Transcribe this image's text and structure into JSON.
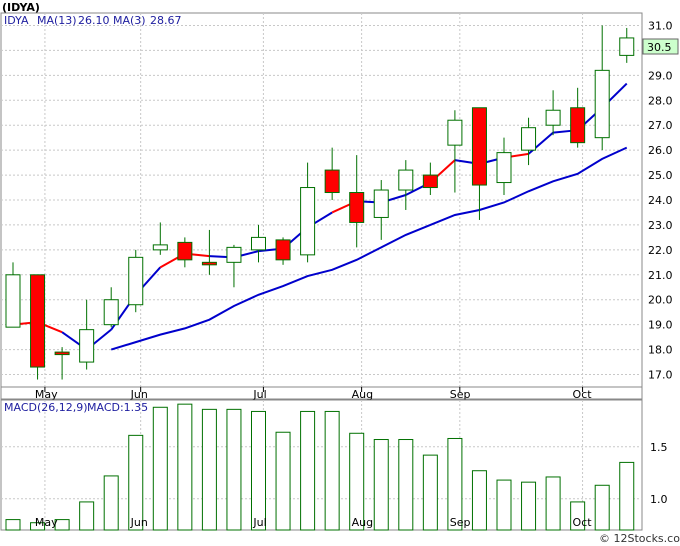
{
  "chart_data": [
    {
      "type": "candlestick",
      "title": "(IDYA)",
      "legend": {
        "ticker": "IDYA",
        "ma13_label": "MA(13)",
        "ma13_value": "26.10",
        "ma3_label": "MA(3)",
        "ma3_value": "28.67"
      },
      "last_price": "30.5",
      "ylim": [
        16.5,
        31.5
      ],
      "y_ticks": [
        "17.0",
        "18.0",
        "19.0",
        "20.0",
        "21.0",
        "22.0",
        "23.0",
        "24.0",
        "25.0",
        "26.0",
        "27.0",
        "28.0",
        "29.0",
        "30.0",
        "31.0"
      ],
      "x_ticks": [
        {
          "label": "May",
          "index": 1.3
        },
        {
          "label": "Jun",
          "index": 5.2
        },
        {
          "label": "Jul",
          "index": 10.2
        },
        {
          "label": "Aug",
          "index": 14.2
        },
        {
          "label": "Sep",
          "index": 18.2
        },
        {
          "label": "Oct",
          "index": 23.2
        }
      ],
      "candles": [
        {
          "open": 18.9,
          "high": 21.5,
          "low": 18.9,
          "close": 21.0
        },
        {
          "open": 21.0,
          "high": 21.0,
          "low": 16.8,
          "close": 17.3
        },
        {
          "open": 17.9,
          "high": 18.1,
          "low": 16.8,
          "close": 17.8
        },
        {
          "open": 17.5,
          "high": 20.0,
          "low": 17.2,
          "close": 18.8
        },
        {
          "open": 19.0,
          "high": 20.5,
          "low": 18.9,
          "close": 20.0
        },
        {
          "open": 19.8,
          "high": 22.0,
          "low": 19.5,
          "close": 21.7
        },
        {
          "open": 22.0,
          "high": 23.1,
          "low": 21.8,
          "close": 22.2
        },
        {
          "open": 22.3,
          "high": 22.5,
          "low": 21.3,
          "close": 21.6
        },
        {
          "open": 21.5,
          "high": 22.8,
          "low": 21.0,
          "close": 21.4
        },
        {
          "open": 21.5,
          "high": 22.2,
          "low": 20.5,
          "close": 22.1
        },
        {
          "open": 22.0,
          "high": 23.0,
          "low": 21.5,
          "close": 22.5
        },
        {
          "open": 22.4,
          "high": 22.5,
          "low": 21.4,
          "close": 21.6
        },
        {
          "open": 21.8,
          "high": 25.5,
          "low": 21.5,
          "close": 24.5
        },
        {
          "open": 25.2,
          "high": 26.1,
          "low": 24.0,
          "close": 24.3
        },
        {
          "open": 24.3,
          "high": 25.8,
          "low": 22.1,
          "close": 23.1
        },
        {
          "open": 23.3,
          "high": 24.8,
          "low": 22.4,
          "close": 24.4
        },
        {
          "open": 24.4,
          "high": 25.6,
          "low": 23.6,
          "close": 25.2
        },
        {
          "open": 25.0,
          "high": 25.5,
          "low": 24.2,
          "close": 24.5
        },
        {
          "open": 26.2,
          "high": 27.6,
          "low": 24.3,
          "close": 27.2
        },
        {
          "open": 27.7,
          "high": 27.7,
          "low": 23.2,
          "close": 24.6
        },
        {
          "open": 24.7,
          "high": 26.5,
          "low": 24.2,
          "close": 25.9
        },
        {
          "open": 26.0,
          "high": 27.3,
          "low": 25.4,
          "close": 26.9
        },
        {
          "open": 27.0,
          "high": 28.4,
          "low": 26.6,
          "close": 27.6
        },
        {
          "open": 27.7,
          "high": 28.5,
          "low": 26.1,
          "close": 26.3
        },
        {
          "open": 26.5,
          "high": 31.0,
          "low": 26.0,
          "close": 29.2
        },
        {
          "open": 29.8,
          "high": 30.9,
          "low": 29.5,
          "close": 30.5
        }
      ],
      "ma13": [
        {
          "index": 4,
          "value": 18.0
        },
        {
          "index": 5,
          "value": 18.3
        },
        {
          "index": 6,
          "value": 18.6
        },
        {
          "index": 7,
          "value": 18.85
        },
        {
          "index": 8,
          "value": 19.2
        },
        {
          "index": 9,
          "value": 19.75
        },
        {
          "index": 10,
          "value": 20.2
        },
        {
          "index": 11,
          "value": 20.55
        },
        {
          "index": 12,
          "value": 20.95
        },
        {
          "index": 13,
          "value": 21.2
        },
        {
          "index": 14,
          "value": 21.6
        },
        {
          "index": 15,
          "value": 22.1
        },
        {
          "index": 16,
          "value": 22.6
        },
        {
          "index": 17,
          "value": 23.0
        },
        {
          "index": 18,
          "value": 23.4
        },
        {
          "index": 19,
          "value": 23.6
        },
        {
          "index": 20,
          "value": 23.9
        },
        {
          "index": 21,
          "value": 24.35
        },
        {
          "index": 22,
          "value": 24.75
        },
        {
          "index": 23,
          "value": 25.05
        },
        {
          "index": 24,
          "value": 25.65
        },
        {
          "index": 25,
          "value": 26.1
        }
      ],
      "ma3": [
        {
          "index": 0,
          "value": 19.0,
          "trend": "up"
        },
        {
          "index": 1,
          "value": 19.1,
          "trend": "down"
        },
        {
          "index": 2,
          "value": 18.7,
          "trend": "down"
        },
        {
          "index": 3,
          "value": 18.0,
          "trend": "up"
        },
        {
          "index": 4,
          "value": 18.8,
          "trend": "up"
        },
        {
          "index": 5,
          "value": 20.2,
          "trend": "up"
        },
        {
          "index": 6,
          "value": 21.3,
          "trend": "up"
        },
        {
          "index": 7,
          "value": 21.85,
          "trend": "down"
        },
        {
          "index": 8,
          "value": 21.75,
          "trend": "down"
        },
        {
          "index": 9,
          "value": 21.7,
          "trend": "up"
        },
        {
          "index": 10,
          "value": 21.95,
          "trend": "up"
        },
        {
          "index": 11,
          "value": 22.05,
          "trend": "up"
        },
        {
          "index": 12,
          "value": 22.9,
          "trend": "up"
        },
        {
          "index": 13,
          "value": 23.5,
          "trend": "up"
        },
        {
          "index": 14,
          "value": 23.95,
          "trend": "down"
        },
        {
          "index": 15,
          "value": 23.9,
          "trend": "up"
        },
        {
          "index": 16,
          "value": 24.2,
          "trend": "up"
        },
        {
          "index": 17,
          "value": 24.7,
          "trend": "up"
        },
        {
          "index": 18,
          "value": 25.6,
          "trend": "down"
        },
        {
          "index": 19,
          "value": 25.45,
          "trend": "up"
        },
        {
          "index": 20,
          "value": 25.7,
          "trend": "up"
        },
        {
          "index": 21,
          "value": 25.85,
          "trend": "down"
        },
        {
          "index": 22,
          "value": 26.7,
          "trend": "up"
        },
        {
          "index": 23,
          "value": 26.8,
          "trend": "up"
        },
        {
          "index": 24,
          "value": 27.7,
          "trend": "up"
        },
        {
          "index": 25,
          "value": 28.67,
          "trend": "up"
        }
      ],
      "colors": {
        "up_fill": "#ffffff",
        "down_fill": "#ff0000",
        "candle_outline": "#007000",
        "ma13": "#0000cc",
        "ma3_up": "#0000cc",
        "ma3_down": "#ff0000",
        "grid": "#c8c8c8",
        "title": "#000000",
        "legend_text": "#2020a0"
      }
    },
    {
      "type": "bar",
      "label": "MACD(26,12,9)",
      "value_label": "MACD:1.35",
      "ylim": [
        0.7,
        1.95
      ],
      "y_ticks": [
        "1.0",
        "1.5"
      ],
      "x_ticks": [
        {
          "label": "May",
          "index": 1.3
        },
        {
          "label": "Jun",
          "index": 5.2
        },
        {
          "label": "Jul",
          "index": 10.2
        },
        {
          "label": "Aug",
          "index": 14.2
        },
        {
          "label": "Sep",
          "index": 18.2
        },
        {
          "label": "Oct",
          "index": 23.2
        }
      ],
      "values": [
        0.8,
        0.77,
        0.8,
        0.97,
        1.22,
        1.61,
        1.88,
        1.91,
        1.86,
        1.86,
        1.84,
        1.64,
        1.84,
        1.84,
        1.63,
        1.57,
        1.57,
        1.42,
        1.58,
        1.27,
        1.18,
        1.16,
        1.21,
        0.97,
        1.13,
        1.35
      ],
      "colors": {
        "bar_outline": "#007000",
        "bar_fill": "#ffffff",
        "legend_text": "#2020a0"
      }
    }
  ],
  "watermark": "© 12Stocks.com"
}
